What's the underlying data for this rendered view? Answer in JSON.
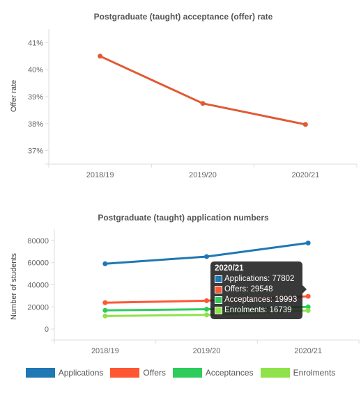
{
  "chart_data": [
    {
      "type": "line",
      "title": "Postgraduate (taught) acceptance (offer) rate",
      "xlabel": "",
      "ylabel": "Offer rate",
      "categories": [
        "2018/19",
        "2019/20",
        "2020/21"
      ],
      "series": [
        {
          "values": [
            40.5,
            38.75,
            37.97
          ],
          "color": "#e05a33"
        }
      ],
      "ylim": [
        36.5,
        41.5
      ],
      "yticks": [
        37,
        38,
        39,
        40,
        41
      ],
      "ytick_labels": [
        "37%",
        "38%",
        "39%",
        "40%",
        "41%"
      ],
      "grid": false,
      "legend": "none"
    },
    {
      "type": "line",
      "title": "Postgraduate (taught) application numbers",
      "xlabel": "",
      "ylabel": "Number of students",
      "categories": [
        "2018/19",
        "2019/20",
        "2020/21"
      ],
      "series": [
        {
          "name": "Applications",
          "values": [
            59000,
            65500,
            77802
          ],
          "color": "#1f77b4"
        },
        {
          "name": "Offers",
          "values": [
            23800,
            25600,
            29548
          ],
          "color": "#ff5733"
        },
        {
          "name": "Acceptances",
          "values": [
            16900,
            17900,
            19993
          ],
          "color": "#2ecc5b"
        },
        {
          "name": "Enrolments",
          "values": [
            11800,
            12800,
            16739
          ],
          "color": "#8fe24a"
        }
      ],
      "ylim": [
        -10000,
        90000
      ],
      "yticks": [
        0,
        20000,
        40000,
        60000,
        80000
      ],
      "ytick_labels": [
        "0",
        "20000",
        "40000",
        "60000",
        "80000"
      ],
      "grid": false,
      "legend": "bottom",
      "tooltip": {
        "title": "2020/21",
        "category_index": 2,
        "rows": [
          {
            "label": "Applications: 77802",
            "color": "#1f77b4"
          },
          {
            "label": "Offers: 29548",
            "color": "#ff5733"
          },
          {
            "label": "Acceptances: 19993",
            "color": "#2ecc5b"
          },
          {
            "label": "Enrolments: 16739",
            "color": "#8fe24a"
          }
        ]
      }
    }
  ]
}
